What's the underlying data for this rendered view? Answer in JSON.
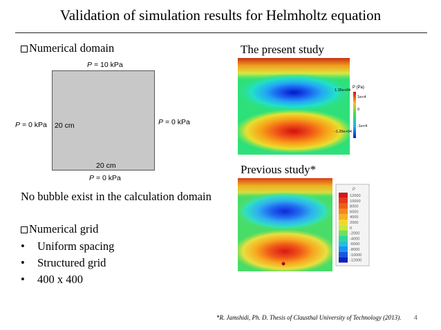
{
  "slide": {
    "title": "Validation of simulation results for Helmholtz equation",
    "number": "4",
    "footnote": "*R. Jamshidi, Ph. D. Thesis of Clausthal University of Technology (2013)."
  },
  "left": {
    "numerical_domain_heading": "Numerical domain",
    "domain": {
      "top_label": "= 10 kPa",
      "bottom_label": "= 0 kPa",
      "left_label": "= 0 kPa",
      "right_label": "= 0 kPa",
      "pressure_symbol": "P",
      "left_dim": "20 cm",
      "bottom_dim": "20 cm",
      "fill_color": "#c8c8c8"
    },
    "note": "No bubble exist in the calculation domain",
    "numerical_grid_heading": "Numerical grid",
    "bullets": [
      "Uniform spacing",
      "Structured grid",
      "400 x 400"
    ]
  },
  "right": {
    "present_heading": "The present study",
    "previous_heading": "Previous study*",
    "present_colorbar": {
      "title": "P (Pa)",
      "max": "1.35e+04",
      "min": "-1.35e+04",
      "ticks": [
        "1e+4",
        "0",
        "-1e+4"
      ]
    },
    "previous_colorbar": {
      "title": "P",
      "ticks": [
        "12000",
        "10000",
        "8000",
        "6000",
        "4000",
        "2000",
        "0",
        "-2000",
        "-4000",
        "-6000",
        "-8000",
        "-10000",
        "-12000"
      ]
    }
  }
}
